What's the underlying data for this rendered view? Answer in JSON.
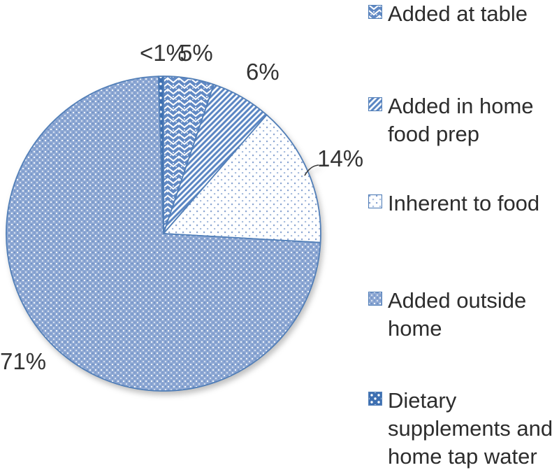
{
  "chart_data": {
    "type": "pie",
    "title": "",
    "legend_position": "right",
    "direction": "clockwise",
    "start_angle": "top",
    "slices": [
      {
        "label": "Added at table",
        "value": 5,
        "display_label": "5%",
        "pattern": "basket-weave"
      },
      {
        "label": "Added in home food prep",
        "value": 6,
        "display_label": "6%",
        "pattern": "diagonal-stripes"
      },
      {
        "label": "Inherent to food",
        "value": 14,
        "display_label": "14%",
        "pattern": "light-dots"
      },
      {
        "label": "Added outside home",
        "value": 71,
        "display_label": "71%",
        "pattern": "dense-checker"
      },
      {
        "label": "Dietary supplements and home tap water",
        "value": 0.5,
        "display_label": "<1%",
        "pattern": "dark-dotted"
      }
    ]
  },
  "legend": {
    "items": [
      {
        "label": "Added at table"
      },
      {
        "label": "Added in home food prep"
      },
      {
        "label": "Inherent to food"
      },
      {
        "label": "Added outside home"
      },
      {
        "label": "Dietary supplements and home tap water"
      }
    ]
  },
  "colors": {
    "pattern_blue": "#5b86c3",
    "weave_blue": "#6189c4",
    "light_dot_blue": "#8ca6d2",
    "dense_base": "#8fa9d4",
    "dense_dark": "#6f90c4",
    "dark_fill": "#3d6fb1",
    "outline": "#527fb8",
    "label_text": "#333333",
    "legend_text": "#2d2d2d",
    "background": "#ffffff"
  }
}
